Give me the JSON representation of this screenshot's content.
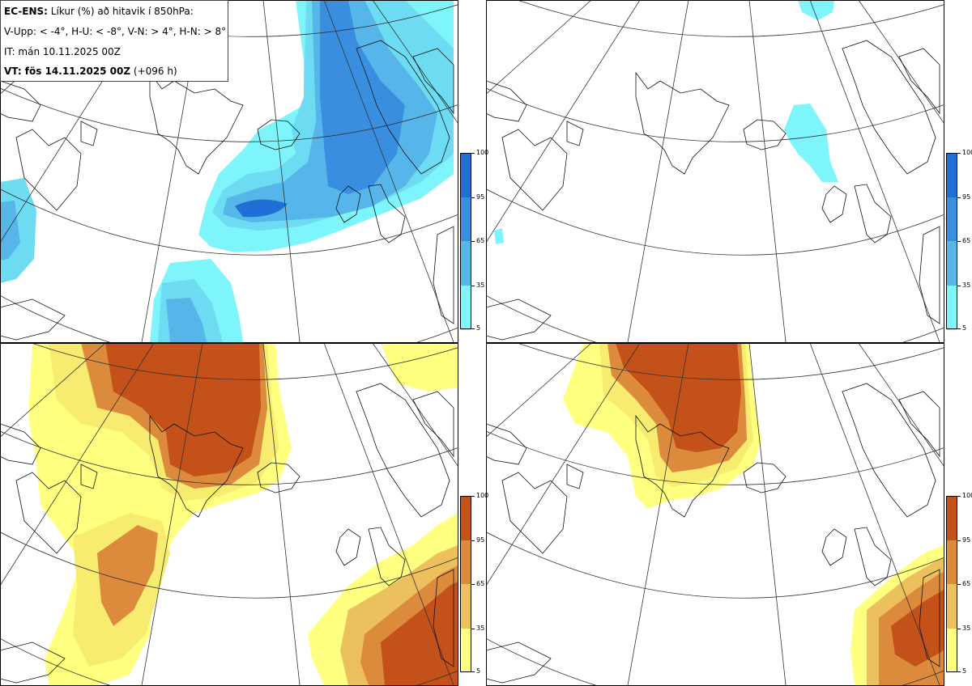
{
  "legend": {
    "line1_bold": "EC-ENS:",
    "line1_rest": "Líkur (%) að hitavik í 850hPa:",
    "line2": "V-Upp: < -4°, H-U: < -8°, V-N: > 4°, H-N: > 8°",
    "line3": "IT: mán 10.11.2025 00Z",
    "line4_bold": "VT: fös 14.11.2025 00Z",
    "line4_rest": "(+096 h)"
  },
  "colorbar": {
    "ticks": [
      "100",
      "95",
      "65",
      "35",
      "5"
    ],
    "cold_colors": [
      "#1f6fd6",
      "#3a8ee0",
      "#56b6ea",
      "#6ddcf3",
      "#7ef5fa"
    ],
    "warm_colors": [
      "#c4501a",
      "#dc8a3c",
      "#ecc05c",
      "#f7ec70",
      "#ffff80"
    ]
  },
  "panels": [
    {
      "id": "V-Upp",
      "scheme": "cold"
    },
    {
      "id": "H-U",
      "scheme": "cold"
    },
    {
      "id": "V-N",
      "scheme": "warm"
    },
    {
      "id": "H-N",
      "scheme": "warm"
    }
  ]
}
